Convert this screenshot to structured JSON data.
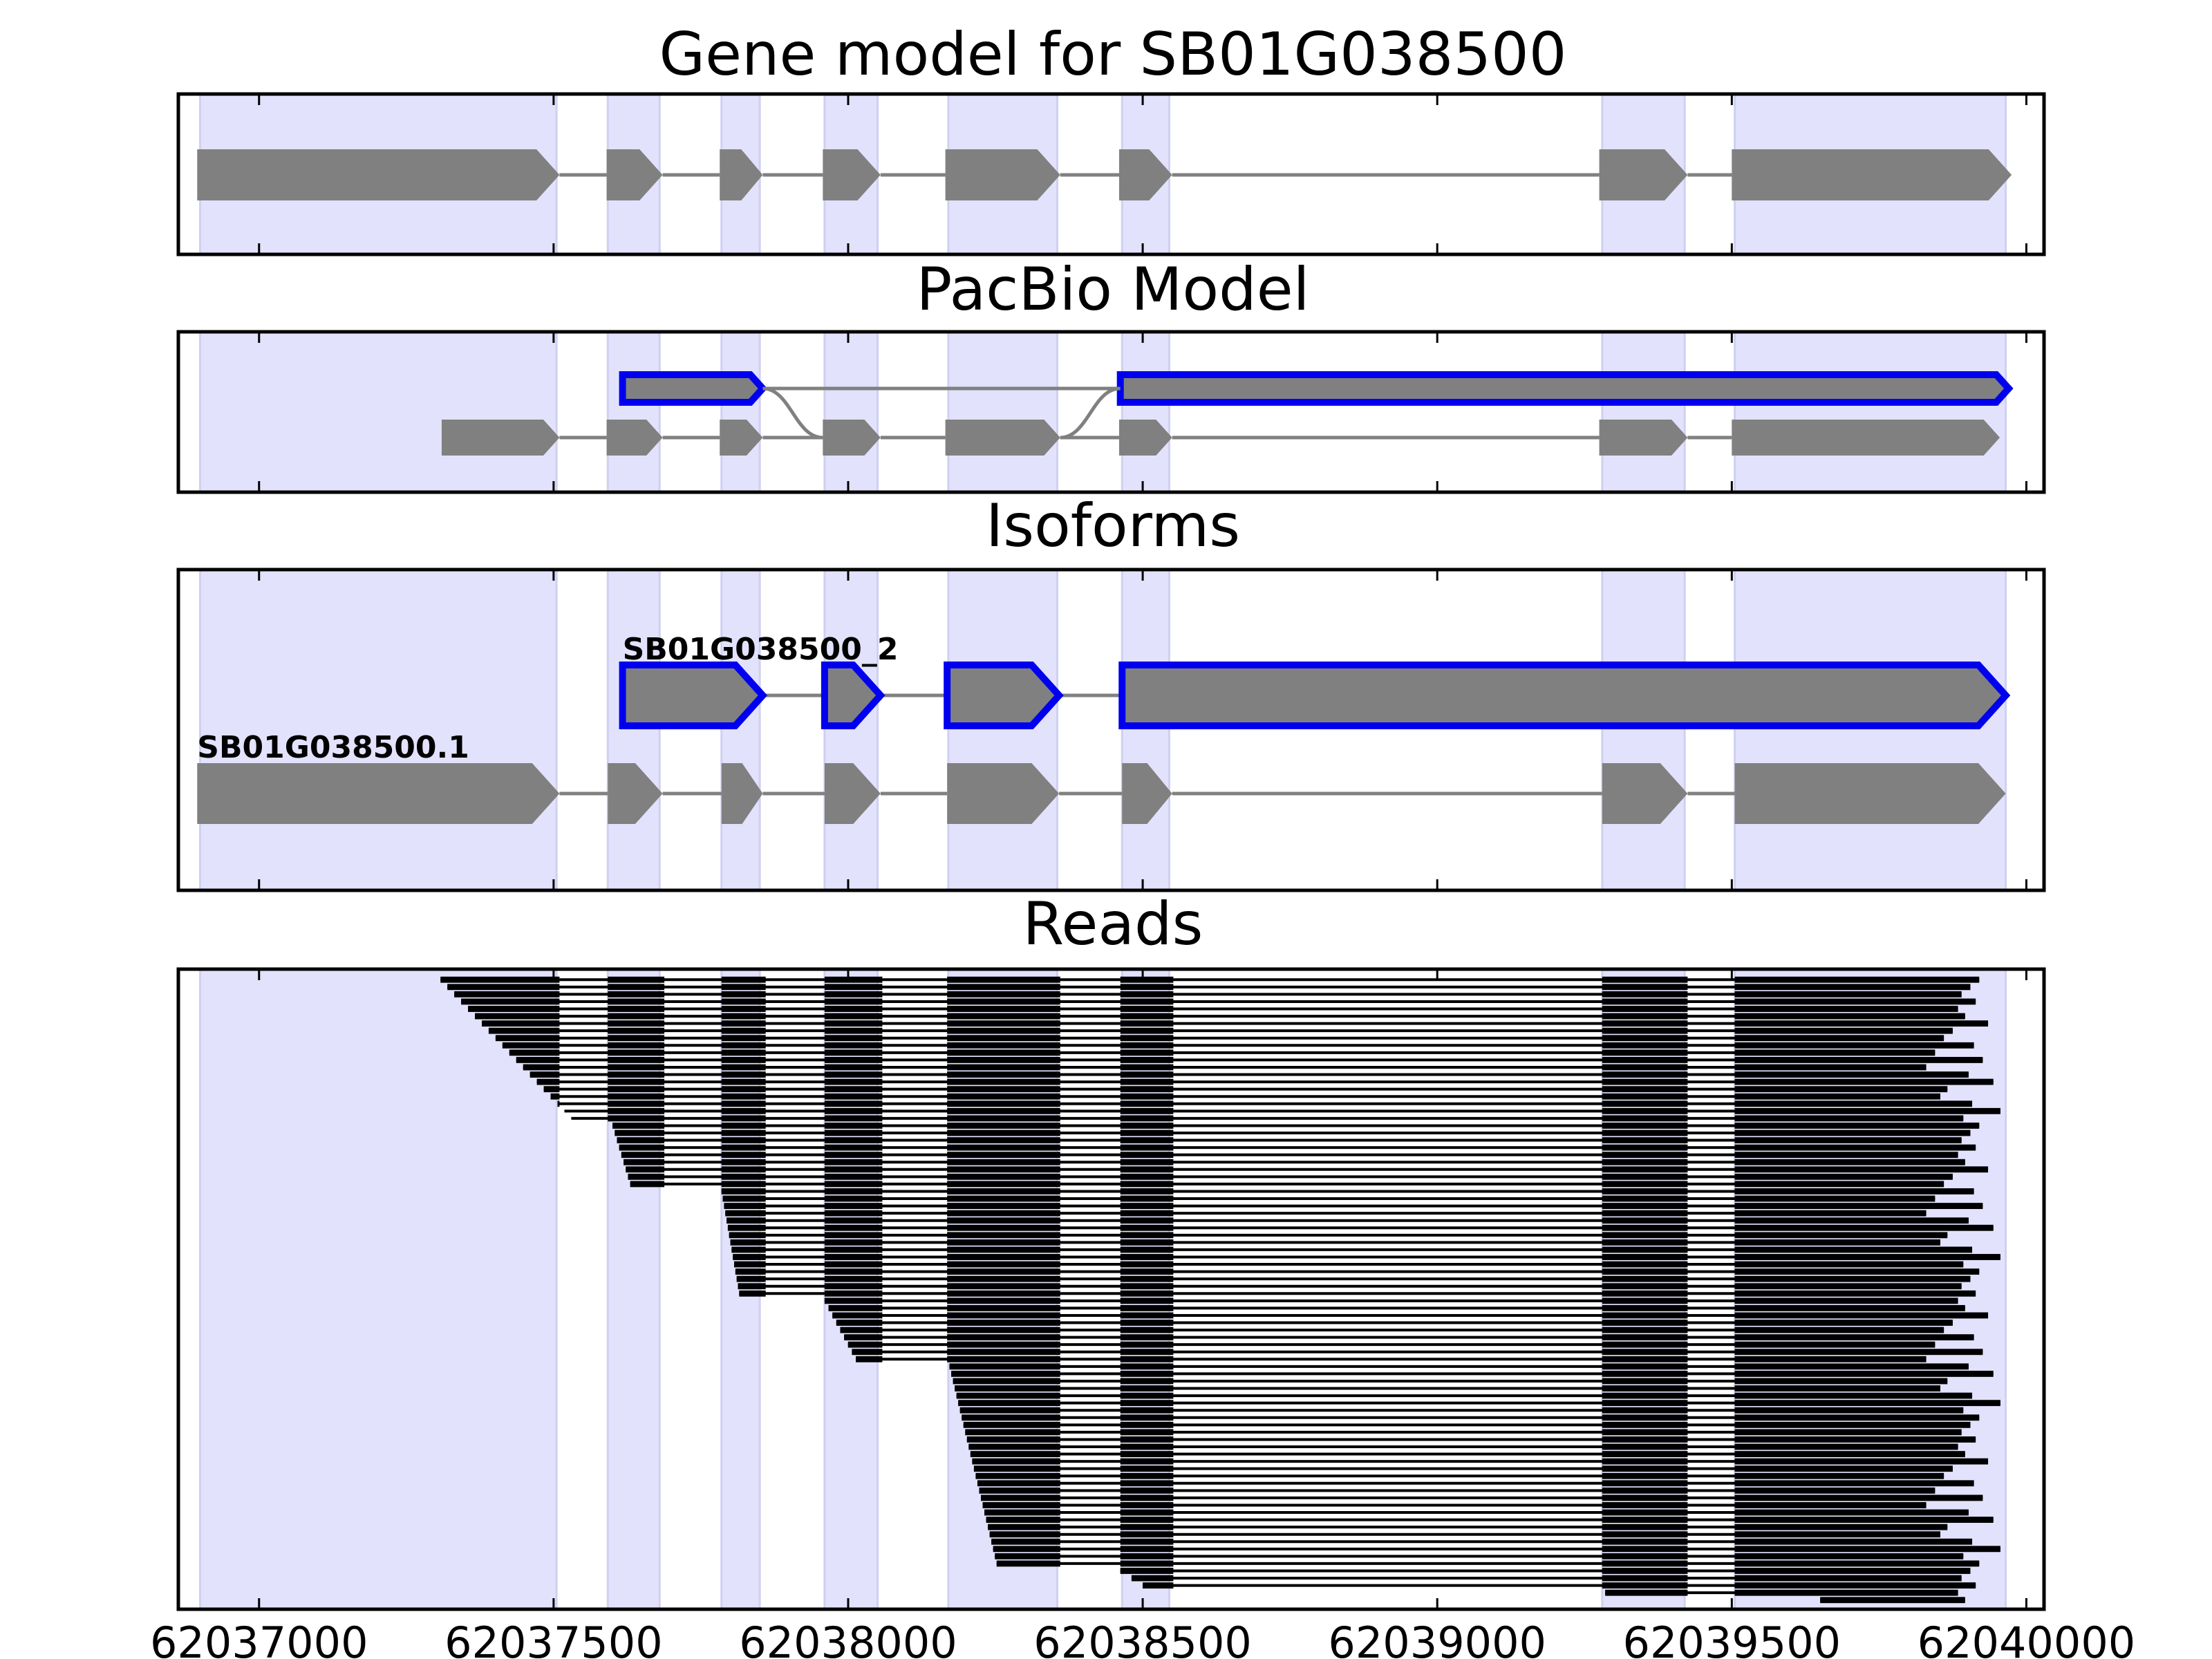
{
  "chart_data": {
    "type": "gene-track",
    "xlim": [
      62036863,
      62040030
    ],
    "x_ticks": [
      "62037000",
      "62037500",
      "62038000",
      "62038500",
      "62039000",
      "62039500",
      "62040000"
    ],
    "highlight_exons": [
      [
        62036900,
        62037505
      ],
      [
        62037592,
        62037680
      ],
      [
        62037785,
        62037850
      ],
      [
        62037960,
        62038050
      ],
      [
        62038170,
        62038355
      ],
      [
        62038465,
        62038545
      ],
      [
        62039280,
        62039420
      ],
      [
        62039505,
        62039965
      ]
    ],
    "panels": [
      {
        "title": "Gene model for SB01G038500",
        "models": [
          {
            "name": "",
            "highlight": false,
            "exons": [
              [
                62036895,
                62037510
              ],
              [
                62037590,
                62037685
              ],
              [
                62037782,
                62037855
              ],
              [
                62037957,
                62038055
              ],
              [
                62038165,
                62038360
              ],
              [
                62038460,
                62038550
              ],
              [
                62039275,
                62039425
              ],
              [
                62039500,
                62039975
              ]
            ]
          }
        ]
      },
      {
        "title": "PacBio Model",
        "models": [
          {
            "name": "",
            "highlight": true,
            "lane": 0,
            "exons": [
              [
                62037617,
                62037855
              ],
              [
                62038462,
                62039970
              ]
            ]
          },
          {
            "name": "",
            "highlight": false,
            "lane": 1,
            "exons": [
              [
                62037310,
                62037510
              ],
              [
                62037590,
                62037685
              ],
              [
                62037782,
                62037855
              ],
              [
                62037957,
                62038055
              ],
              [
                62038165,
                62038360
              ],
              [
                62038460,
                62038550
              ],
              [
                62039275,
                62039425
              ],
              [
                62039500,
                62039955
              ]
            ]
          }
        ]
      },
      {
        "title": "Isoforms",
        "models": [
          {
            "name": "SB01G038500_2",
            "highlight": true,
            "lane": 0,
            "exons": [
              [
                62037617,
                62037855
              ],
              [
                62037960,
                62038055
              ],
              [
                62038168,
                62038358
              ],
              [
                62038465,
                62039965
              ]
            ]
          },
          {
            "name": "SB01G038500.1",
            "highlight": false,
            "lane": 1,
            "exons": [
              [
                62036895,
                62037510
              ],
              [
                62037592,
                62037685
              ],
              [
                62037785,
                62037855
              ],
              [
                62037960,
                62038055
              ],
              [
                62038168,
                62038358
              ],
              [
                62038465,
                62038550
              ],
              [
                62039280,
                62039425
              ],
              [
                62039505,
                62039965
              ]
            ]
          }
        ]
      },
      {
        "title": "Reads",
        "read_groups": [
          {
            "first_exon": 0,
            "count": 20,
            "first_start": 62037308,
            "last_start": 62037530
          },
          {
            "first_exon": 1,
            "count": 9,
            "first_start": 62037600,
            "last_start": 62037630
          },
          {
            "first_exon": 2,
            "count": 15,
            "first_start": 62037785,
            "last_start": 62037815
          },
          {
            "first_exon": 3,
            "count": 9,
            "first_start": 62037960,
            "last_start": 62038013
          },
          {
            "first_exon": 4,
            "count": 28,
            "first_start": 62038172,
            "last_start": 62038252
          },
          {
            "first_exon": 5,
            "count": 3,
            "first_start": 62038462,
            "last_start": 62038500
          },
          {
            "first_exon": 6,
            "count": 1,
            "first_start": 62039285,
            "last_start": 62039285
          },
          {
            "first_exon": 7,
            "count": 1,
            "first_start": 62039650,
            "last_start": 62039650
          }
        ],
        "read_exons": [
          [
            62037308,
            62037510
          ],
          [
            62037592,
            62037688
          ],
          [
            62037785,
            62037860
          ],
          [
            62037960,
            62038058
          ],
          [
            62038168,
            62038360
          ],
          [
            62038462,
            62038552
          ],
          [
            62039280,
            62039425
          ],
          [
            62039505,
            62039920
          ]
        ]
      }
    ]
  }
}
